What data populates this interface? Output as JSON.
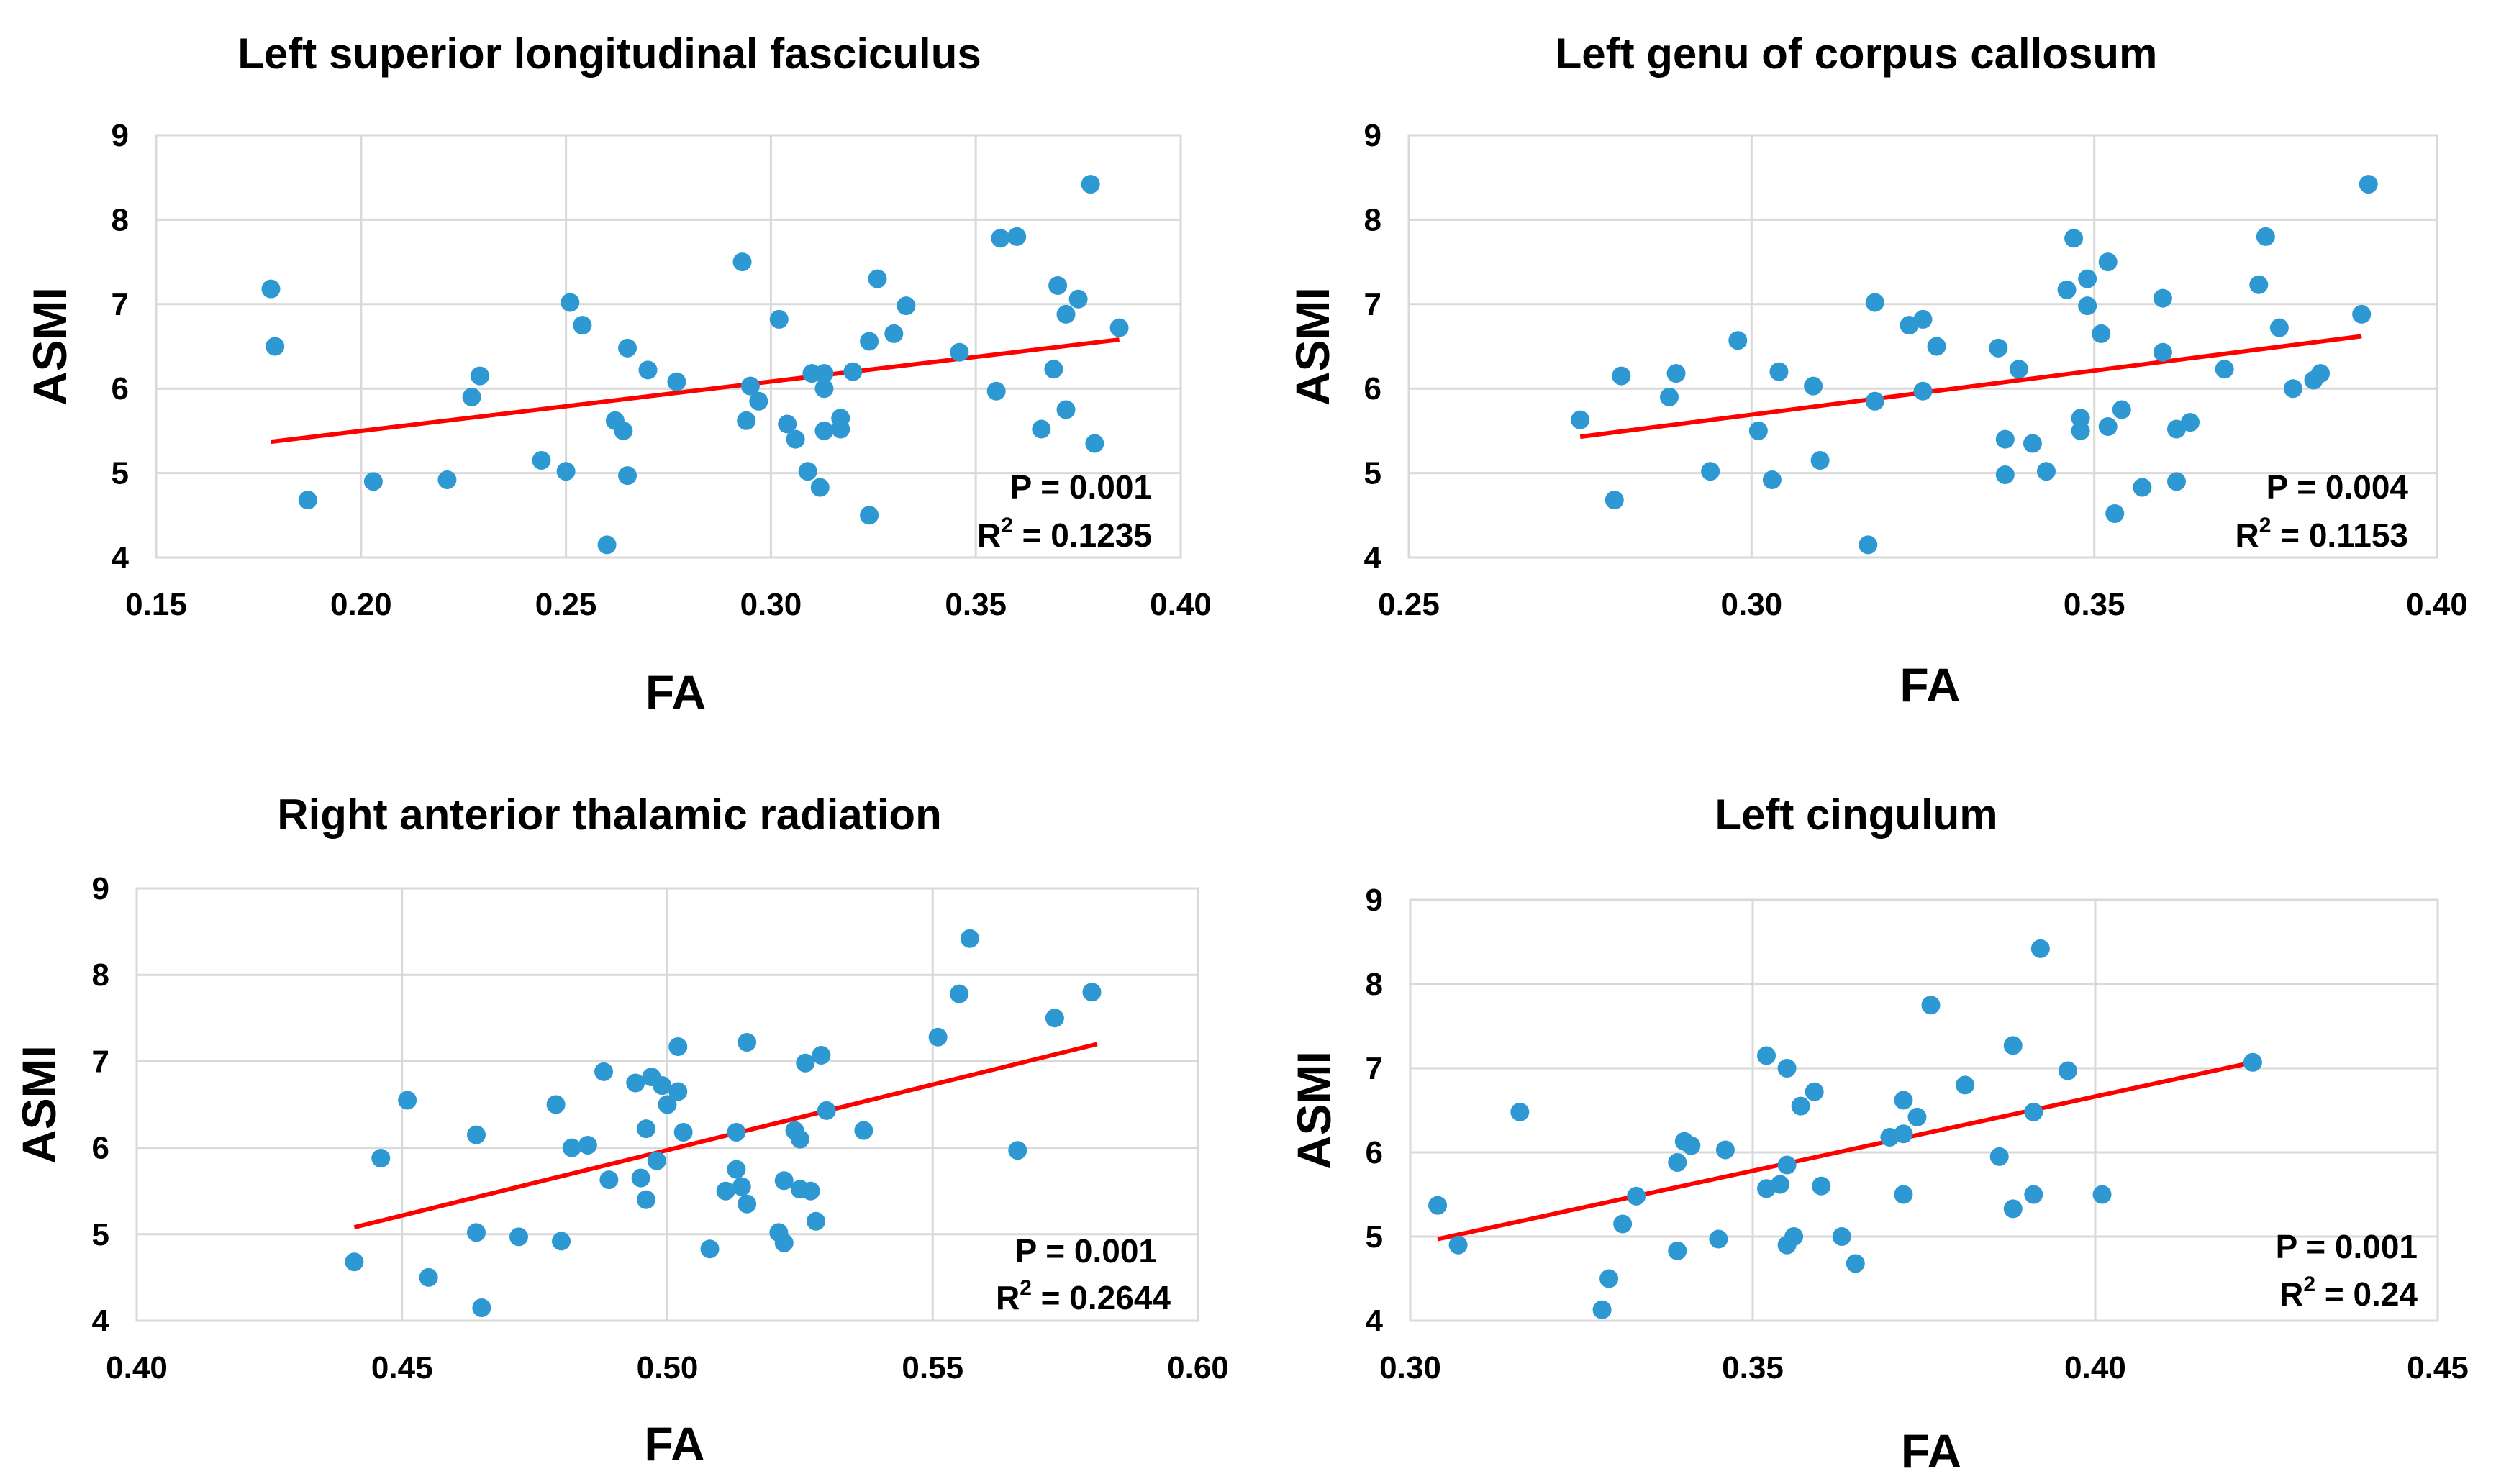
{
  "colors": {
    "point": "#2e98d2",
    "trendline": "#ff0000",
    "grid": "#d9d9d9"
  },
  "chart_data": [
    {
      "type": "scatter",
      "title": "Left superior longitudinal fasciculus",
      "xlabel": "FA",
      "ylabel": "ASMI",
      "xlim": [
        0.15,
        0.4
      ],
      "ylim": [
        4,
        9
      ],
      "xticks": [
        "0.15",
        "0.20",
        "0.25",
        "0.30",
        "0.35",
        "0.40"
      ],
      "yticks": [
        "4",
        "5",
        "6",
        "7",
        "8",
        "9"
      ],
      "grid": true,
      "p_value": "P = 0.001",
      "r2_prefix": "R",
      "r2_value": " = 0.1235",
      "trendline": {
        "x": [
          0.178,
          0.385
        ],
        "y": [
          5.37,
          6.58
        ]
      },
      "points": [
        {
          "x": 0.178,
          "y": 7.18
        },
        {
          "x": 0.179,
          "y": 6.5
        },
        {
          "x": 0.187,
          "y": 4.68
        },
        {
          "x": 0.203,
          "y": 4.9
        },
        {
          "x": 0.221,
          "y": 4.92
        },
        {
          "x": 0.227,
          "y": 5.9
        },
        {
          "x": 0.229,
          "y": 6.15
        },
        {
          "x": 0.244,
          "y": 5.15
        },
        {
          "x": 0.25,
          "y": 5.02
        },
        {
          "x": 0.251,
          "y": 7.02
        },
        {
          "x": 0.254,
          "y": 6.75
        },
        {
          "x": 0.26,
          "y": 4.15
        },
        {
          "x": 0.262,
          "y": 5.62
        },
        {
          "x": 0.264,
          "y": 5.5
        },
        {
          "x": 0.265,
          "y": 4.97
        },
        {
          "x": 0.265,
          "y": 6.48
        },
        {
          "x": 0.27,
          "y": 6.22
        },
        {
          "x": 0.277,
          "y": 6.08
        },
        {
          "x": 0.293,
          "y": 7.5
        },
        {
          "x": 0.294,
          "y": 5.62
        },
        {
          "x": 0.295,
          "y": 6.03
        },
        {
          "x": 0.297,
          "y": 5.85
        },
        {
          "x": 0.302,
          "y": 6.82
        },
        {
          "x": 0.304,
          "y": 5.58
        },
        {
          "x": 0.306,
          "y": 5.4
        },
        {
          "x": 0.309,
          "y": 5.02
        },
        {
          "x": 0.31,
          "y": 6.18
        },
        {
          "x": 0.313,
          "y": 6.18
        },
        {
          "x": 0.312,
          "y": 4.83
        },
        {
          "x": 0.313,
          "y": 6.0
        },
        {
          "x": 0.313,
          "y": 5.5
        },
        {
          "x": 0.317,
          "y": 5.65
        },
        {
          "x": 0.317,
          "y": 5.52
        },
        {
          "x": 0.32,
          "y": 6.2
        },
        {
          "x": 0.324,
          "y": 4.5
        },
        {
          "x": 0.324,
          "y": 6.56
        },
        {
          "x": 0.326,
          "y": 7.3
        },
        {
          "x": 0.33,
          "y": 6.65
        },
        {
          "x": 0.333,
          "y": 6.98
        },
        {
          "x": 0.346,
          "y": 6.43
        },
        {
          "x": 0.355,
          "y": 5.97
        },
        {
          "x": 0.356,
          "y": 7.78
        },
        {
          "x": 0.36,
          "y": 7.8
        },
        {
          "x": 0.366,
          "y": 5.52
        },
        {
          "x": 0.369,
          "y": 6.23
        },
        {
          "x": 0.37,
          "y": 7.22
        },
        {
          "x": 0.372,
          "y": 5.75
        },
        {
          "x": 0.372,
          "y": 6.88
        },
        {
          "x": 0.375,
          "y": 7.06
        },
        {
          "x": 0.378,
          "y": 8.42
        },
        {
          "x": 0.379,
          "y": 5.35
        },
        {
          "x": 0.385,
          "y": 6.72
        }
      ]
    },
    {
      "type": "scatter",
      "title": "Left genu of corpus callosum",
      "xlabel": "FA",
      "ylabel": "ASMI",
      "xlim": [
        0.25,
        0.4
      ],
      "ylim": [
        4,
        9
      ],
      "xticks": [
        "0.25",
        "0.30",
        "0.35",
        "0.40"
      ],
      "yticks": [
        "4",
        "5",
        "6",
        "7",
        "8",
        "9"
      ],
      "grid": true,
      "p_value": "P = 0.004",
      "r2_prefix": "R",
      "r2_value": " = 0.1153",
      "trendline": {
        "x": [
          0.275,
          0.389
        ],
        "y": [
          5.43,
          6.62
        ]
      },
      "points": [
        {
          "x": 0.275,
          "y": 5.63
        },
        {
          "x": 0.28,
          "y": 4.68
        },
        {
          "x": 0.281,
          "y": 6.15
        },
        {
          "x": 0.288,
          "y": 5.9
        },
        {
          "x": 0.289,
          "y": 6.18
        },
        {
          "x": 0.294,
          "y": 5.02
        },
        {
          "x": 0.298,
          "y": 6.57
        },
        {
          "x": 0.301,
          "y": 5.5
        },
        {
          "x": 0.303,
          "y": 4.92
        },
        {
          "x": 0.304,
          "y": 6.2
        },
        {
          "x": 0.309,
          "y": 6.03
        },
        {
          "x": 0.31,
          "y": 5.15
        },
        {
          "x": 0.317,
          "y": 4.15
        },
        {
          "x": 0.318,
          "y": 7.02
        },
        {
          "x": 0.318,
          "y": 5.85
        },
        {
          "x": 0.323,
          "y": 6.75
        },
        {
          "x": 0.325,
          "y": 6.82
        },
        {
          "x": 0.325,
          "y": 5.97
        },
        {
          "x": 0.327,
          "y": 6.5
        },
        {
          "x": 0.336,
          "y": 6.48
        },
        {
          "x": 0.337,
          "y": 5.4
        },
        {
          "x": 0.337,
          "y": 4.98
        },
        {
          "x": 0.339,
          "y": 6.23
        },
        {
          "x": 0.341,
          "y": 5.35
        },
        {
          "x": 0.343,
          "y": 5.02
        },
        {
          "x": 0.346,
          "y": 7.17
        },
        {
          "x": 0.347,
          "y": 7.78
        },
        {
          "x": 0.348,
          "y": 5.65
        },
        {
          "x": 0.348,
          "y": 5.5
        },
        {
          "x": 0.349,
          "y": 7.3
        },
        {
          "x": 0.349,
          "y": 6.98
        },
        {
          "x": 0.351,
          "y": 6.65
        },
        {
          "x": 0.352,
          "y": 7.5
        },
        {
          "x": 0.352,
          "y": 5.55
        },
        {
          "x": 0.353,
          "y": 4.52
        },
        {
          "x": 0.354,
          "y": 5.75
        },
        {
          "x": 0.357,
          "y": 4.83
        },
        {
          "x": 0.36,
          "y": 7.07
        },
        {
          "x": 0.36,
          "y": 6.43
        },
        {
          "x": 0.362,
          "y": 5.52
        },
        {
          "x": 0.362,
          "y": 4.9
        },
        {
          "x": 0.364,
          "y": 5.6
        },
        {
          "x": 0.369,
          "y": 6.23
        },
        {
          "x": 0.374,
          "y": 7.23
        },
        {
          "x": 0.375,
          "y": 7.8
        },
        {
          "x": 0.377,
          "y": 6.72
        },
        {
          "x": 0.379,
          "y": 6.0
        },
        {
          "x": 0.382,
          "y": 6.1
        },
        {
          "x": 0.383,
          "y": 6.18
        },
        {
          "x": 0.389,
          "y": 6.88
        },
        {
          "x": 0.39,
          "y": 8.42
        }
      ]
    },
    {
      "type": "scatter",
      "title": "Right anterior thalamic radiation",
      "xlabel": "FA",
      "ylabel": "ASMI",
      "xlim": [
        0.4,
        0.6
      ],
      "ylim": [
        4,
        9
      ],
      "xticks": [
        "0.40",
        "0.45",
        "0.50",
        "0.55",
        "0.60"
      ],
      "yticks": [
        "4",
        "5",
        "6",
        "7",
        "8",
        "9"
      ],
      "grid": true,
      "p_value": "P = 0.001",
      "r2_prefix": "R",
      "r2_value": " = 0.2644",
      "trendline": {
        "x": [
          0.441,
          0.581
        ],
        "y": [
          5.08,
          7.2
        ]
      },
      "points": [
        {
          "x": 0.441,
          "y": 4.68
        },
        {
          "x": 0.446,
          "y": 5.88
        },
        {
          "x": 0.451,
          "y": 6.55
        },
        {
          "x": 0.455,
          "y": 4.5
        },
        {
          "x": 0.464,
          "y": 6.15
        },
        {
          "x": 0.464,
          "y": 5.02
        },
        {
          "x": 0.465,
          "y": 4.15
        },
        {
          "x": 0.472,
          "y": 4.97
        },
        {
          "x": 0.479,
          "y": 6.5
        },
        {
          "x": 0.48,
          "y": 4.92
        },
        {
          "x": 0.482,
          "y": 6.0
        },
        {
          "x": 0.485,
          "y": 6.03
        },
        {
          "x": 0.488,
          "y": 6.88
        },
        {
          "x": 0.489,
          "y": 5.63
        },
        {
          "x": 0.494,
          "y": 6.75
        },
        {
          "x": 0.495,
          "y": 5.65
        },
        {
          "x": 0.496,
          "y": 6.22
        },
        {
          "x": 0.496,
          "y": 5.4
        },
        {
          "x": 0.497,
          "y": 6.82
        },
        {
          "x": 0.498,
          "y": 5.85
        },
        {
          "x": 0.499,
          "y": 6.72
        },
        {
          "x": 0.5,
          "y": 6.5
        },
        {
          "x": 0.502,
          "y": 6.65
        },
        {
          "x": 0.502,
          "y": 7.17
        },
        {
          "x": 0.503,
          "y": 6.18
        },
        {
          "x": 0.508,
          "y": 4.83
        },
        {
          "x": 0.511,
          "y": 5.5
        },
        {
          "x": 0.513,
          "y": 6.18
        },
        {
          "x": 0.513,
          "y": 5.75
        },
        {
          "x": 0.514,
          "y": 5.55
        },
        {
          "x": 0.515,
          "y": 7.22
        },
        {
          "x": 0.515,
          "y": 5.35
        },
        {
          "x": 0.521,
          "y": 5.02
        },
        {
          "x": 0.522,
          "y": 5.62
        },
        {
          "x": 0.522,
          "y": 4.9
        },
        {
          "x": 0.524,
          "y": 6.2
        },
        {
          "x": 0.525,
          "y": 6.1
        },
        {
          "x": 0.525,
          "y": 5.52
        },
        {
          "x": 0.526,
          "y": 6.98
        },
        {
          "x": 0.527,
          "y": 5.5
        },
        {
          "x": 0.528,
          "y": 5.15
        },
        {
          "x": 0.529,
          "y": 7.07
        },
        {
          "x": 0.53,
          "y": 6.43
        },
        {
          "x": 0.537,
          "y": 6.2
        },
        {
          "x": 0.551,
          "y": 7.28
        },
        {
          "x": 0.555,
          "y": 7.78
        },
        {
          "x": 0.557,
          "y": 8.42
        },
        {
          "x": 0.566,
          "y": 5.97
        },
        {
          "x": 0.573,
          "y": 7.5
        },
        {
          "x": 0.58,
          "y": 7.8
        }
      ]
    },
    {
      "type": "scatter",
      "title": "Left cingulum",
      "xlabel": "FA",
      "ylabel": "ASMI",
      "xlim": [
        0.3,
        0.45
      ],
      "ylim": [
        4,
        9
      ],
      "xticks": [
        "0.30",
        "0.35",
        "0.40",
        "0.45"
      ],
      "yticks": [
        "4",
        "5",
        "6",
        "7",
        "8",
        "9"
      ],
      "grid": true,
      "p_value": "P = 0.001",
      "r2_prefix": "R",
      "r2_value": " = 0.24",
      "trendline": {
        "x": [
          0.304,
          0.423
        ],
        "y": [
          4.97,
          7.07
        ]
      },
      "points": [
        {
          "x": 0.304,
          "y": 5.37
        },
        {
          "x": 0.307,
          "y": 4.9
        },
        {
          "x": 0.316,
          "y": 6.48
        },
        {
          "x": 0.328,
          "y": 4.13
        },
        {
          "x": 0.329,
          "y": 4.5
        },
        {
          "x": 0.331,
          "y": 5.15
        },
        {
          "x": 0.333,
          "y": 5.48
        },
        {
          "x": 0.339,
          "y": 5.88
        },
        {
          "x": 0.339,
          "y": 4.83
        },
        {
          "x": 0.34,
          "y": 6.13
        },
        {
          "x": 0.341,
          "y": 6.08
        },
        {
          "x": 0.345,
          "y": 4.97
        },
        {
          "x": 0.346,
          "y": 6.03
        },
        {
          "x": 0.352,
          "y": 7.15
        },
        {
          "x": 0.352,
          "y": 5.57
        },
        {
          "x": 0.354,
          "y": 5.62
        },
        {
          "x": 0.355,
          "y": 7.0
        },
        {
          "x": 0.355,
          "y": 5.85
        },
        {
          "x": 0.355,
          "y": 4.9
        },
        {
          "x": 0.356,
          "y": 5.0
        },
        {
          "x": 0.357,
          "y": 6.55
        },
        {
          "x": 0.359,
          "y": 6.72
        },
        {
          "x": 0.36,
          "y": 5.6
        },
        {
          "x": 0.363,
          "y": 5.0
        },
        {
          "x": 0.365,
          "y": 4.68
        },
        {
          "x": 0.37,
          "y": 6.18
        },
        {
          "x": 0.372,
          "y": 6.22
        },
        {
          "x": 0.372,
          "y": 6.62
        },
        {
          "x": 0.372,
          "y": 5.5
        },
        {
          "x": 0.374,
          "y": 6.42
        },
        {
          "x": 0.376,
          "y": 7.75
        },
        {
          "x": 0.381,
          "y": 6.8
        },
        {
          "x": 0.386,
          "y": 5.95
        },
        {
          "x": 0.388,
          "y": 5.33
        },
        {
          "x": 0.388,
          "y": 7.27
        },
        {
          "x": 0.391,
          "y": 5.5
        },
        {
          "x": 0.391,
          "y": 6.48
        },
        {
          "x": 0.392,
          "y": 8.42
        },
        {
          "x": 0.396,
          "y": 6.97
        },
        {
          "x": 0.401,
          "y": 5.5
        },
        {
          "x": 0.423,
          "y": 7.07
        }
      ]
    }
  ]
}
